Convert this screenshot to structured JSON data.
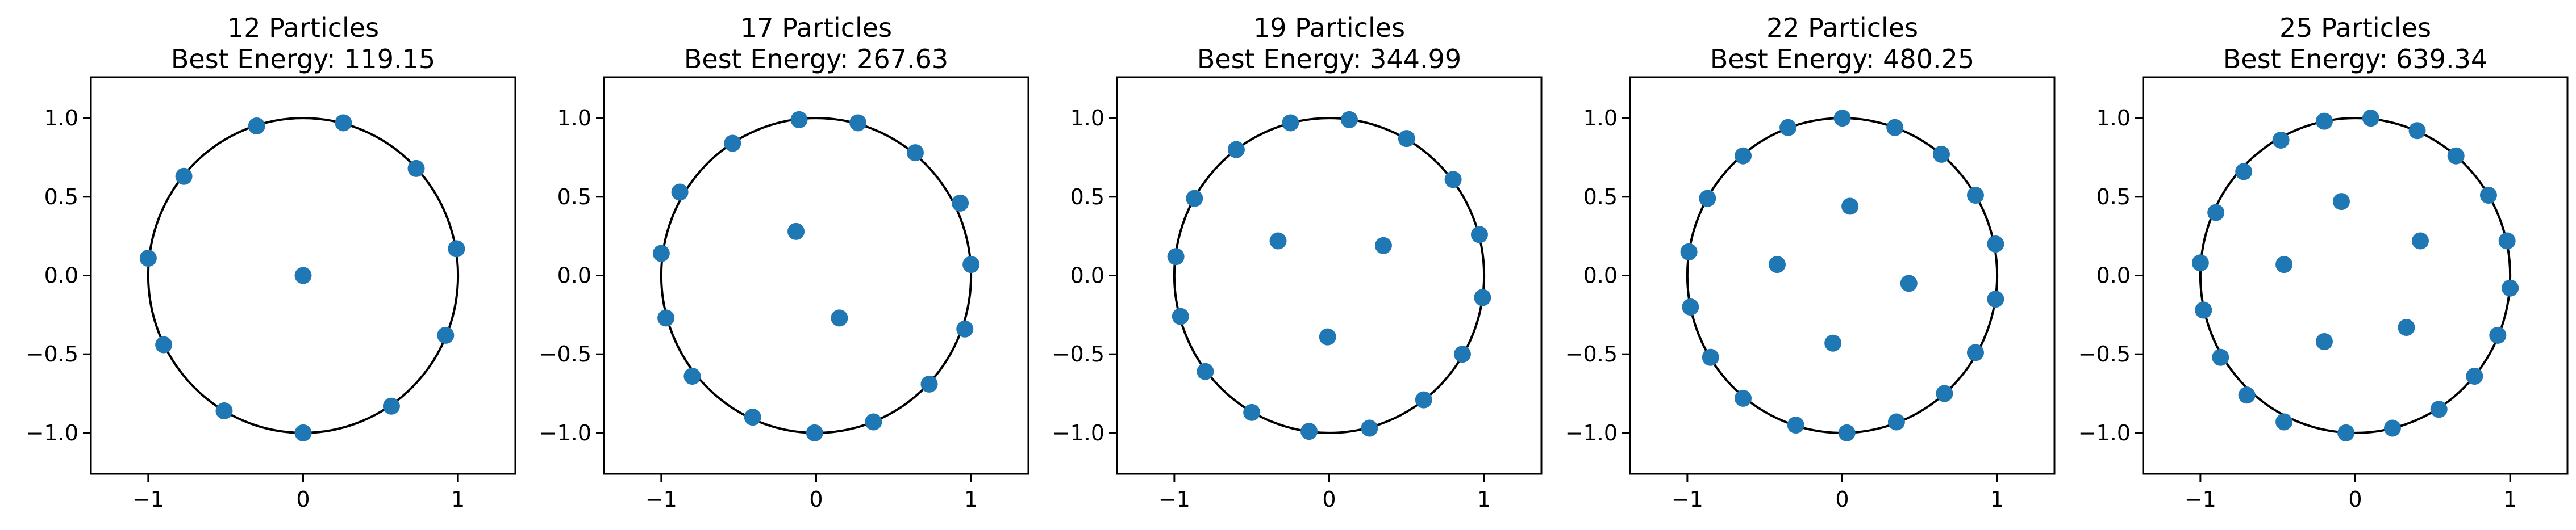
{
  "chart_data": [
    {
      "type": "scatter",
      "title_line1": "12 Particles",
      "title_line2": "Best Energy: 119.15",
      "xlim": [
        -1.37,
        1.37
      ],
      "ylim": [
        -1.26,
        1.26
      ],
      "xticks": [
        -1,
        0,
        1
      ],
      "yticks": [
        -1.0,
        -0.5,
        0.0,
        0.5,
        1.0
      ],
      "xtick_labels": [
        "−1",
        "0",
        "1"
      ],
      "ytick_labels": [
        "−1.0",
        "−0.5",
        "0.0",
        "0.5",
        "1.0"
      ],
      "circle_radius": 1.0,
      "points": [
        [
          0.0,
          0.0
        ],
        [
          0.26,
          0.97
        ],
        [
          -0.3,
          0.95
        ],
        [
          0.73,
          0.68
        ],
        [
          -0.77,
          0.63
        ],
        [
          0.99,
          0.17
        ],
        [
          -1.0,
          0.11
        ],
        [
          0.92,
          -0.38
        ],
        [
          -0.9,
          -0.44
        ],
        [
          0.57,
          -0.83
        ],
        [
          -0.51,
          -0.86
        ],
        [
          0.0,
          -1.0
        ]
      ]
    },
    {
      "type": "scatter",
      "title_line1": "17 Particles",
      "title_line2": "Best Energy: 267.63",
      "xlim": [
        -1.37,
        1.37
      ],
      "ylim": [
        -1.26,
        1.26
      ],
      "xticks": [
        -1,
        0,
        1
      ],
      "yticks": [
        -1.0,
        -0.5,
        0.0,
        0.5,
        1.0
      ],
      "xtick_labels": [
        "−1",
        "0",
        "1"
      ],
      "ytick_labels": [
        "−1.0",
        "−0.5",
        "0.0",
        "0.5",
        "1.0"
      ],
      "circle_radius": 1.0,
      "points": [
        [
          -0.13,
          0.28
        ],
        [
          0.15,
          -0.27
        ],
        [
          -0.11,
          0.99
        ],
        [
          0.27,
          0.97
        ],
        [
          -0.54,
          0.84
        ],
        [
          0.64,
          0.78
        ],
        [
          -0.88,
          0.53
        ],
        [
          0.93,
          0.46
        ],
        [
          -1.0,
          0.14
        ],
        [
          1.0,
          0.07
        ],
        [
          -0.97,
          -0.27
        ],
        [
          0.96,
          -0.34
        ],
        [
          -0.8,
          -0.64
        ],
        [
          0.73,
          -0.69
        ],
        [
          -0.41,
          -0.9
        ],
        [
          0.37,
          -0.93
        ],
        [
          -0.01,
          -1.0
        ]
      ]
    },
    {
      "type": "scatter",
      "title_line1": "19 Particles",
      "title_line2": "Best Energy: 344.99",
      "xlim": [
        -1.37,
        1.37
      ],
      "ylim": [
        -1.26,
        1.26
      ],
      "xticks": [
        -1,
        0,
        1
      ],
      "yticks": [
        -1.0,
        -0.5,
        0.0,
        0.5,
        1.0
      ],
      "xtick_labels": [
        "−1",
        "0",
        "1"
      ],
      "ytick_labels": [
        "−1.0",
        "−0.5",
        "0.0",
        "0.5",
        "1.0"
      ],
      "circle_radius": 1.0,
      "points": [
        [
          -0.33,
          0.22
        ],
        [
          0.35,
          0.19
        ],
        [
          -0.01,
          -0.39
        ],
        [
          0.13,
          0.99
        ],
        [
          -0.25,
          0.97
        ],
        [
          0.5,
          0.87
        ],
        [
          -0.6,
          0.8
        ],
        [
          0.8,
          0.61
        ],
        [
          -0.87,
          0.49
        ],
        [
          0.97,
          0.26
        ],
        [
          -0.99,
          0.12
        ],
        [
          0.99,
          -0.14
        ],
        [
          -0.96,
          -0.26
        ],
        [
          0.86,
          -0.5
        ],
        [
          -0.8,
          -0.61
        ],
        [
          0.61,
          -0.79
        ],
        [
          -0.5,
          -0.87
        ],
        [
          0.26,
          -0.97
        ],
        [
          -0.13,
          -0.99
        ]
      ]
    },
    {
      "type": "scatter",
      "title_line1": "22 Particles",
      "title_line2": "Best Energy: 480.25",
      "xlim": [
        -1.37,
        1.37
      ],
      "ylim": [
        -1.26,
        1.26
      ],
      "xticks": [
        -1,
        0,
        1
      ],
      "yticks": [
        -1.0,
        -0.5,
        0.0,
        0.5,
        1.0
      ],
      "xtick_labels": [
        "−1",
        "0",
        "1"
      ],
      "ytick_labels": [
        "−1.0",
        "−0.5",
        "0.0",
        "0.5",
        "1.0"
      ],
      "circle_radius": 1.0,
      "points": [
        [
          0.05,
          0.44
        ],
        [
          -0.42,
          0.07
        ],
        [
          0.43,
          -0.05
        ],
        [
          -0.06,
          -0.43
        ],
        [
          -0.0,
          1.0
        ],
        [
          0.34,
          0.94
        ],
        [
          -0.35,
          0.94
        ],
        [
          0.64,
          0.77
        ],
        [
          -0.64,
          0.76
        ],
        [
          0.86,
          0.51
        ],
        [
          -0.87,
          0.49
        ],
        [
          0.99,
          0.2
        ],
        [
          -0.99,
          0.15
        ],
        [
          0.99,
          -0.15
        ],
        [
          -0.98,
          -0.2
        ],
        [
          0.86,
          -0.49
        ],
        [
          -0.85,
          -0.52
        ],
        [
          0.66,
          -0.75
        ],
        [
          -0.64,
          -0.78
        ],
        [
          0.35,
          -0.93
        ],
        [
          -0.3,
          -0.95
        ],
        [
          0.03,
          -1.0
        ]
      ]
    },
    {
      "type": "scatter",
      "title_line1": "25 Particles",
      "title_line2": "Best Energy: 639.34",
      "xlim": [
        -1.37,
        1.37
      ],
      "ylim": [
        -1.26,
        1.26
      ],
      "xticks": [
        -1,
        0,
        1
      ],
      "yticks": [
        -1.0,
        -0.5,
        0.0,
        0.5,
        1.0
      ],
      "xtick_labels": [
        "−1",
        "0",
        "1"
      ],
      "ytick_labels": [
        "−1.0",
        "−0.5",
        "0.0",
        "0.5",
        "1.0"
      ],
      "circle_radius": 1.0,
      "points": [
        [
          -0.09,
          0.47
        ],
        [
          0.42,
          0.22
        ],
        [
          -0.46,
          0.07
        ],
        [
          0.33,
          -0.33
        ],
        [
          -0.2,
          -0.42
        ],
        [
          0.1,
          1.0
        ],
        [
          -0.2,
          0.98
        ],
        [
          0.4,
          0.92
        ],
        [
          -0.48,
          0.86
        ],
        [
          0.65,
          0.76
        ],
        [
          -0.72,
          0.66
        ],
        [
          0.86,
          0.51
        ],
        [
          -0.9,
          0.4
        ],
        [
          0.98,
          0.22
        ],
        [
          -1.0,
          0.08
        ],
        [
          1.0,
          -0.08
        ],
        [
          -0.98,
          -0.22
        ],
        [
          0.92,
          -0.38
        ],
        [
          -0.87,
          -0.52
        ],
        [
          0.77,
          -0.64
        ],
        [
          -0.7,
          -0.76
        ],
        [
          0.54,
          -0.85
        ],
        [
          -0.46,
          -0.93
        ],
        [
          0.24,
          -0.97
        ],
        [
          -0.06,
          -1.0
        ]
      ]
    }
  ],
  "colors": {
    "marker": "#1f77b4",
    "circle": "#000000",
    "axes": "#000000",
    "text": "#000000"
  }
}
